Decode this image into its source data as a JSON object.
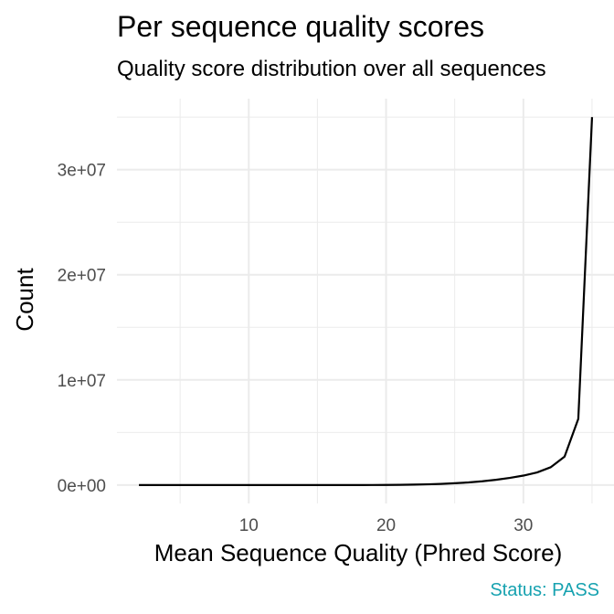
{
  "chart_data": {
    "type": "line",
    "title": "Per sequence quality scores",
    "subtitle": "Quality score distribution over all sequences",
    "xlabel": "Mean Sequence Quality (Phred Score)",
    "ylabel": "Count",
    "xlim": [
      0.4,
      36.6
    ],
    "ylim": [
      -1750000,
      36750000
    ],
    "x_ticks": [
      10,
      20,
      30
    ],
    "x_tick_labels": [
      "10",
      "20",
      "30"
    ],
    "y_ticks": [
      0,
      10000000,
      20000000,
      30000000
    ],
    "y_tick_labels": [
      "0e+00",
      "1e+07",
      "2e+07",
      "3e+07"
    ],
    "grid": true,
    "series": [
      {
        "x": [
          2,
          3,
          4,
          5,
          6,
          7,
          8,
          9,
          10,
          11,
          12,
          13,
          14,
          15,
          16,
          17,
          18,
          19,
          20,
          21,
          22,
          23,
          24,
          25,
          26,
          27,
          28,
          29,
          30,
          31,
          32,
          33,
          34,
          35
        ],
        "y": [
          0,
          0,
          0,
          0,
          0,
          0,
          0,
          0,
          0,
          0,
          0,
          0,
          0,
          0,
          0,
          0,
          0,
          5000,
          10000,
          20000,
          40000,
          70000,
          110000,
          170000,
          250000,
          360000,
          500000,
          680000,
          900000,
          1200000,
          1700000,
          2700000,
          6300000,
          35000000
        ]
      }
    ],
    "caption": "Status: PASS",
    "caption_color": "#17a2b0",
    "line_color": "#000000",
    "grid_color": "#ebebeb"
  }
}
